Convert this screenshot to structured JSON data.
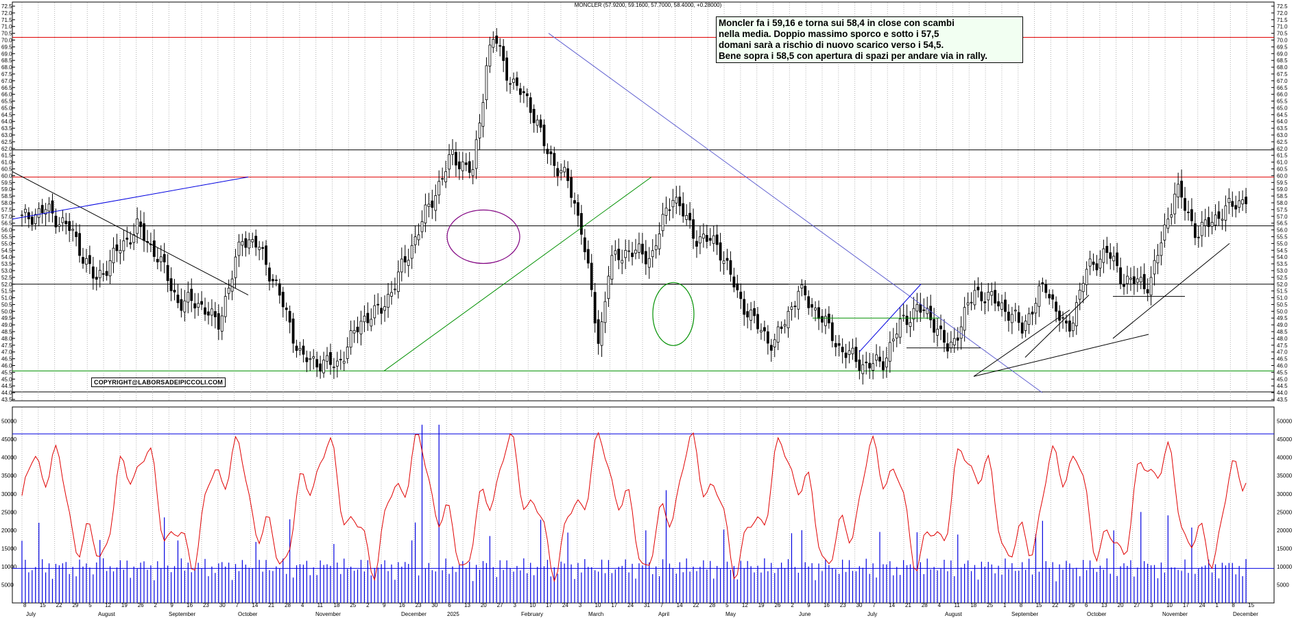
{
  "chart_data": [
    {
      "type": "candlestick",
      "title": "MONCLER (57.9200, 59.1600, 57.7000, 58.4000, +0.28000)",
      "ylim": [
        43.5,
        72.5
      ],
      "y_ticks": [
        "72.5",
        "72.0",
        "71.5",
        "71.0",
        "70.5",
        "70.0",
        "69.5",
        "69.0",
        "68.5",
        "68.0",
        "67.5",
        "67.0",
        "66.5",
        "66.0",
        "65.5",
        "65.0",
        "64.5",
        "64.0",
        "63.5",
        "63.0",
        "62.5",
        "62.0",
        "61.5",
        "61.0",
        "60.5",
        "60.0",
        "59.5",
        "59.0",
        "58.5",
        "58.0",
        "57.5",
        "57.0",
        "56.5",
        "56.0",
        "55.5",
        "55.0",
        "54.5",
        "54.0",
        "53.5",
        "53.0",
        "52.5",
        "52.0",
        "51.5",
        "51.0",
        "50.5",
        "50.0",
        "49.5",
        "49.0",
        "48.5",
        "48.0",
        "47.5",
        "47.0",
        "46.5",
        "46.0",
        "45.5",
        "45.0",
        "44.5",
        "44.0",
        "43.5"
      ],
      "x_tick_labels": [
        "8",
        "15",
        "22",
        "29",
        "5",
        "12",
        "19",
        "26",
        "2",
        "9",
        "16",
        "23",
        "30",
        "7",
        "14",
        "21",
        "28",
        "4",
        "11",
        "18",
        "25",
        "2",
        "9",
        "16",
        "23",
        "30",
        "6",
        "13",
        "20",
        "27",
        "3",
        "10",
        "17",
        "24",
        "3",
        "10",
        "17",
        "24",
        "31",
        "7",
        "14",
        "22",
        "28",
        "5",
        "12",
        "19",
        "26",
        "2",
        "9",
        "16",
        "23",
        "30",
        "7",
        "14",
        "21",
        "28",
        "4",
        "11",
        "18",
        "25",
        "1",
        "8",
        "15",
        "22",
        "29",
        "6",
        "13",
        "20",
        "27",
        "3",
        "10",
        "17",
        "24",
        "1",
        "8",
        "15"
      ],
      "month_labels": [
        "July",
        "August",
        "September",
        "October",
        "November",
        "December",
        "2025",
        "February",
        "March",
        "April",
        "May",
        "June",
        "July",
        "August",
        "September",
        "October",
        "November",
        "December"
      ],
      "horizontal_levels": [
        {
          "value": 70.2,
          "color": "#e00000"
        },
        {
          "value": 61.9,
          "color": "#000000"
        },
        {
          "value": 59.9,
          "color": "#e00000"
        },
        {
          "value": 56.3,
          "color": "#000000"
        },
        {
          "value": 52.0,
          "color": "#000000"
        },
        {
          "value": 45.6,
          "color": "#009000"
        }
      ],
      "last_price": {
        "open": 57.92,
        "high": 59.16,
        "low": 57.7,
        "close": 58.4,
        "change": 0.28
      },
      "series_summary": {
        "start_close": 56.8,
        "max_high": 70.5,
        "min_low": 45.6,
        "key_points": [
          {
            "date": "2024-09-27",
            "value": 59.7
          },
          {
            "date": "2024-11-25",
            "value": 46.0
          },
          {
            "date": "2025-02-12",
            "value": 70.5
          },
          {
            "date": "2025-04-07",
            "value": 47.3
          },
          {
            "date": "2025-05-12",
            "value": 59.0
          },
          {
            "date": "2025-08-18",
            "value": 45.6
          },
          {
            "date": "2025-11-10",
            "value": 59.4
          },
          {
            "date": "2025-12-01",
            "value": 58.4
          }
        ]
      },
      "annotation": [
        "Moncler fa i 59,16 e torna sui 58,4 in close con scambi",
        "nella media. Doppio massimo sporco e sotto i 57,5",
        "domani sarà a rischio di nuovo scarico verso i 54,5.",
        "Bene sopra i 58,5 con apertura di spazi per andare via in rally."
      ],
      "copyright": "COPYRIGHT@LABORSADEIPICCOLI.COM"
    },
    {
      "type": "bar+line",
      "ylim": [
        0,
        52000
      ],
      "y_ticks": [
        "50000",
        "45000",
        "40000",
        "35000",
        "30000",
        "25000",
        "20000",
        "15000",
        "10000",
        "5000"
      ],
      "series": [
        {
          "kind": "bar",
          "color": "#0000e0"
        },
        {
          "kind": "line",
          "color": "#e00000"
        }
      ],
      "horizontal_levels": [
        {
          "value": 46500,
          "color": "#0000e0"
        },
        {
          "value": 9500,
          "color": "#0000e0"
        }
      ]
    }
  ]
}
